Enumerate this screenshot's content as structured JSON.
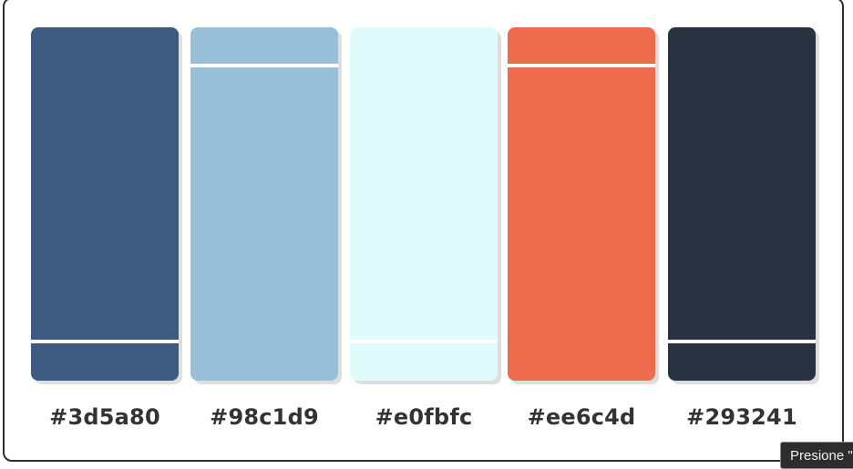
{
  "swatches": [
    {
      "color": "#3d5a80",
      "label": "#3d5a80",
      "lines": [
        "bottom"
      ]
    },
    {
      "color": "#98c1d9",
      "label": "#98c1d9",
      "lines": [
        "top"
      ]
    },
    {
      "color": "#e0fbfc",
      "label": "#e0fbfc",
      "lines": [
        "bottom"
      ]
    },
    {
      "color": "#ee6c4d",
      "label": "#ee6c4d",
      "lines": [
        "top"
      ]
    },
    {
      "color": "#293241",
      "label": "#293241",
      "lines": [
        "bottom"
      ]
    }
  ],
  "tooltip": {
    "text": "Presione \""
  }
}
